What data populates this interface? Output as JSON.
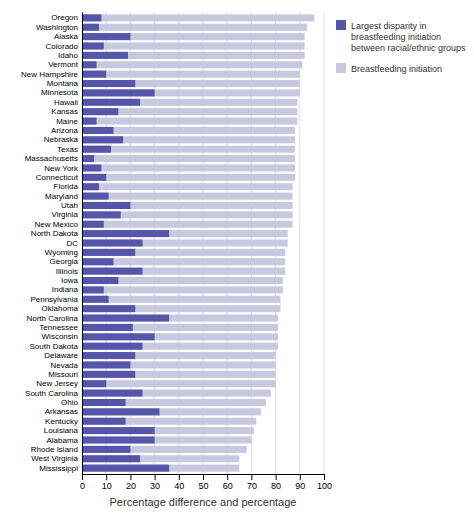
{
  "chart_data": {
    "type": "bar",
    "orientation": "horizontal",
    "categories": [
      "Oregon",
      "Washington",
      "Alaska",
      "Colorado",
      "Idaho",
      "Vermont",
      "New Hampshire",
      "Montana",
      "Minnesota",
      "Hawaii",
      "Kansas",
      "Maine",
      "Arizona",
      "Nebraska",
      "Texas",
      "Massachusetts",
      "New York",
      "Connecticut",
      "Florida",
      "Maryland",
      "Utah",
      "Virginia",
      "New Mexico",
      "North Dakota",
      "DC",
      "Wyoming",
      "Georgia",
      "Illinois",
      "Iowa",
      "Indiana",
      "Pennsylvania",
      "Oklahoma",
      "North Carolina",
      "Tennessee",
      "Wisconsin",
      "South Dakota",
      "Delaware",
      "Nevada",
      "Missouri",
      "New Jersey",
      "South Carolina",
      "Ohio",
      "Arkansas",
      "Kentucky",
      "Louisiana",
      "Alabama",
      "Rhode Island",
      "West Virginia",
      "Mississippi"
    ],
    "series": [
      {
        "name": "Largest disparity in\nbreastfeeding initiation\nbetween racial/ethnic groups",
        "color": "#5555aa",
        "values": [
          8,
          7,
          20,
          9,
          19,
          6,
          10,
          22,
          30,
          24,
          15,
          6,
          13,
          17,
          12,
          5,
          8,
          10,
          7,
          11,
          20,
          16,
          9,
          36,
          25,
          22,
          13,
          25,
          15,
          9,
          11,
          22,
          36,
          21,
          30,
          25,
          22,
          20,
          22,
          10,
          25,
          18,
          32,
          18,
          30,
          30,
          20,
          24,
          36
        ]
      },
      {
        "name": "Breastfeeding initiation",
        "color": "#c8c8e0",
        "values": [
          96,
          93,
          92,
          92,
          92,
          91,
          90,
          90,
          90,
          89,
          89,
          89,
          88,
          88,
          88,
          88,
          88,
          88,
          87,
          87,
          87,
          87,
          87,
          85,
          85,
          84,
          84,
          84,
          83,
          83,
          82,
          82,
          81,
          81,
          81,
          81,
          80,
          80,
          80,
          80,
          78,
          76,
          74,
          72,
          71,
          70,
          68,
          65,
          65
        ]
      }
    ],
    "xlabel": "Percentage difference and percentage",
    "xlim": [
      0,
      100
    ],
    "xticks": [
      0,
      10,
      20,
      30,
      40,
      50,
      60,
      70,
      80,
      90,
      100
    ],
    "grid": true,
    "legend": "right"
  }
}
